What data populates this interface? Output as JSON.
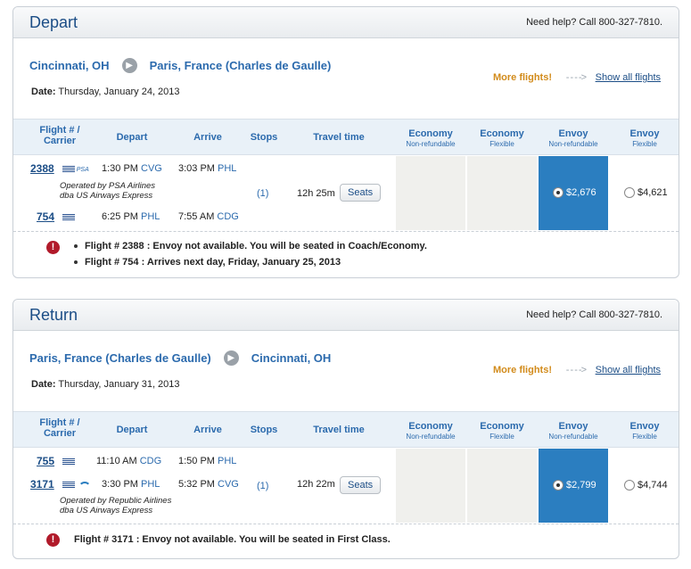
{
  "depart": {
    "title": "Depart",
    "help": "Need help? Call 800-327-7810.",
    "origin": "Cincinnati, OH",
    "destination": "Paris, France (Charles de Gaulle)",
    "date_label": "Date:",
    "date_value": "Thursday, January 24, 2013",
    "more_flights": "More flights!",
    "arrow_text": "- - - ->",
    "show_all": "Show all flights",
    "headers": {
      "flight_line1": "Flight # /",
      "flight_line2": "Carrier",
      "depart": "Depart",
      "arrive": "Arrive",
      "stops": "Stops",
      "travel_time": "Travel time",
      "econ_nr": "Economy",
      "econ_nr_sub": "Non-refundable",
      "econ_flex": "Economy",
      "econ_flex_sub": "Flexible",
      "envoy_nr": "Envoy",
      "envoy_nr_sub": "Non-refundable",
      "envoy_flex": "Envoy",
      "envoy_flex_sub": "Flexible"
    },
    "flights": [
      {
        "number": "2388",
        "carrier_logo": "PSA",
        "depart_time": "1:30 PM",
        "depart_code": "CVG",
        "arrive_time": "3:03 PM",
        "arrive_code": "PHL",
        "operated_line1": "Operated by PSA Airlines",
        "operated_line2": "dba US Airways Express"
      },
      {
        "number": "754",
        "depart_time": "6:25 PM",
        "depart_code": "PHL",
        "arrive_time": "7:55 AM",
        "arrive_code": "CDG"
      }
    ],
    "stops": "(1)",
    "travel_time": "12h 25m",
    "seats_label": "Seats",
    "envoy_nr_price": "$2,676",
    "envoy_flex_price": "$4,621",
    "notes": [
      "Flight # 2388 : Envoy not available. You will be seated in Coach/Economy.",
      "Flight # 754 : Arrives next day, Friday, January 25, 2013"
    ],
    "warn_icon": "!"
  },
  "return": {
    "title": "Return",
    "help": "Need help? Call 800-327-7810.",
    "origin": "Paris, France (Charles de Gaulle)",
    "destination": "Cincinnati, OH",
    "date_label": "Date:",
    "date_value": "Thursday, January 31, 2013",
    "more_flights": "More flights!",
    "arrow_text": "- - - ->",
    "show_all": "Show all flights",
    "flights": [
      {
        "number": "755",
        "depart_time": "11:10 AM",
        "depart_code": "CDG",
        "arrive_time": "1:50 PM",
        "arrive_code": "PHL"
      },
      {
        "number": "3171",
        "depart_time": "3:30 PM",
        "depart_code": "PHL",
        "arrive_time": "5:32 PM",
        "arrive_code": "CVG",
        "operated_line1": "Operated by Republic Airlines",
        "operated_line2": "dba US Airways Express"
      }
    ],
    "stops": "(1)",
    "travel_time": "12h 22m",
    "seats_label": "Seats",
    "envoy_nr_price": "$2,799",
    "envoy_flex_price": "$4,744",
    "notes": [
      "Flight # 3171 : Envoy not available. You will be seated in First Class."
    ],
    "warn_icon": "!"
  },
  "colors": {
    "brand_blue": "#1b4d86",
    "link_blue": "#2b6aad",
    "selected_fare": "#2b7ec0",
    "more_orange": "#d28b1b",
    "warn_red": "#b11a2a"
  }
}
